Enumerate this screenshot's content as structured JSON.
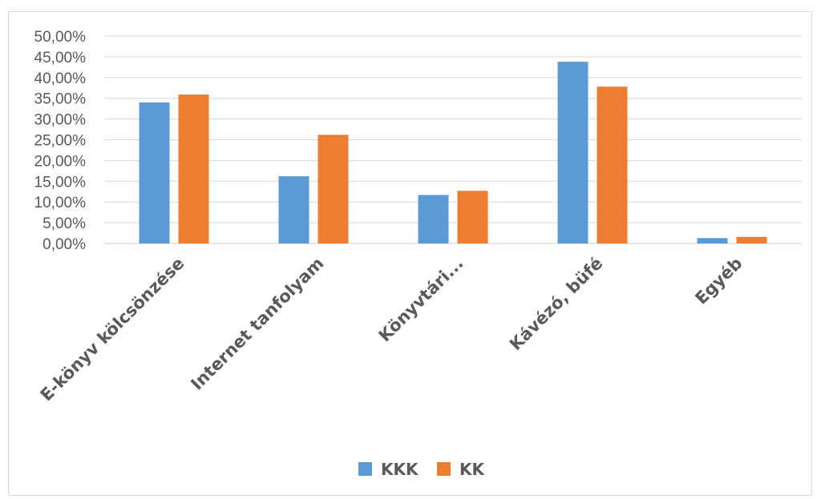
{
  "chart_data": {
    "type": "bar",
    "categories": [
      "E-könyv kölcsönzése",
      "Internet tanfolyam",
      "Könyvtári...",
      "Kávézó, büfé",
      "Egyéb"
    ],
    "series": [
      {
        "name": "KKK",
        "color": "#5b9bd5",
        "values": [
          34.0,
          16.2,
          11.7,
          43.8,
          1.3
        ]
      },
      {
        "name": "KK",
        "color": "#ed7d31",
        "values": [
          35.9,
          26.2,
          12.7,
          37.8,
          1.6
        ]
      }
    ],
    "y_ticks": [
      "0,00%",
      "5,00%",
      "10,00%",
      "15,00%",
      "20,00%",
      "25,00%",
      "30,00%",
      "35,00%",
      "40,00%",
      "45,00%",
      "50,00%"
    ],
    "ylim": [
      0,
      50
    ],
    "y_unit": "%",
    "grid": true,
    "legend_position": "bottom"
  }
}
